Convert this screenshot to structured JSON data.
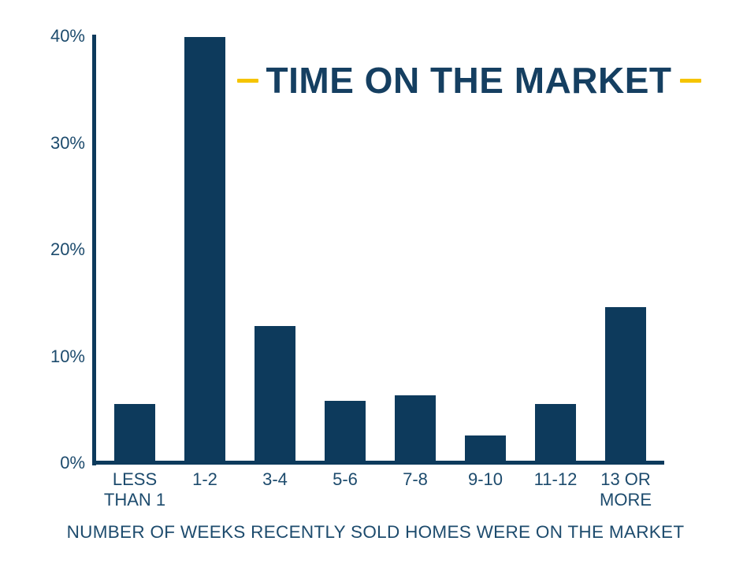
{
  "chart_data": {
    "type": "bar",
    "title": "TIME ON THE MARKET",
    "caption": "NUMBER OF WEEKS RECENTLY SOLD HOMES WERE ON THE MARKET",
    "categories": [
      "LESS\nTHAN 1",
      "1-2",
      "3-4",
      "5-6",
      "7-8",
      "9-10",
      "11-12",
      "13 OR\nMORE"
    ],
    "values": [
      5.4,
      39.8,
      12.7,
      5.7,
      6.2,
      2.4,
      5.4,
      14.5
    ],
    "unit": "%",
    "xlabel": "",
    "ylabel": "",
    "ylim": [
      0,
      40
    ],
    "yticks": [
      "40%",
      "30%",
      "20%",
      "10%",
      "0%"
    ],
    "ytick_values": [
      40,
      30,
      20,
      10,
      0
    ],
    "grid": false,
    "legend_position": "none",
    "colors": {
      "bar": "#0D3A5C",
      "axis": "#0D3A5C",
      "title": "#153F61",
      "label": "#1D4B6D",
      "accent_dash": "#F5C400",
      "background": "#FFFFFF"
    }
  }
}
